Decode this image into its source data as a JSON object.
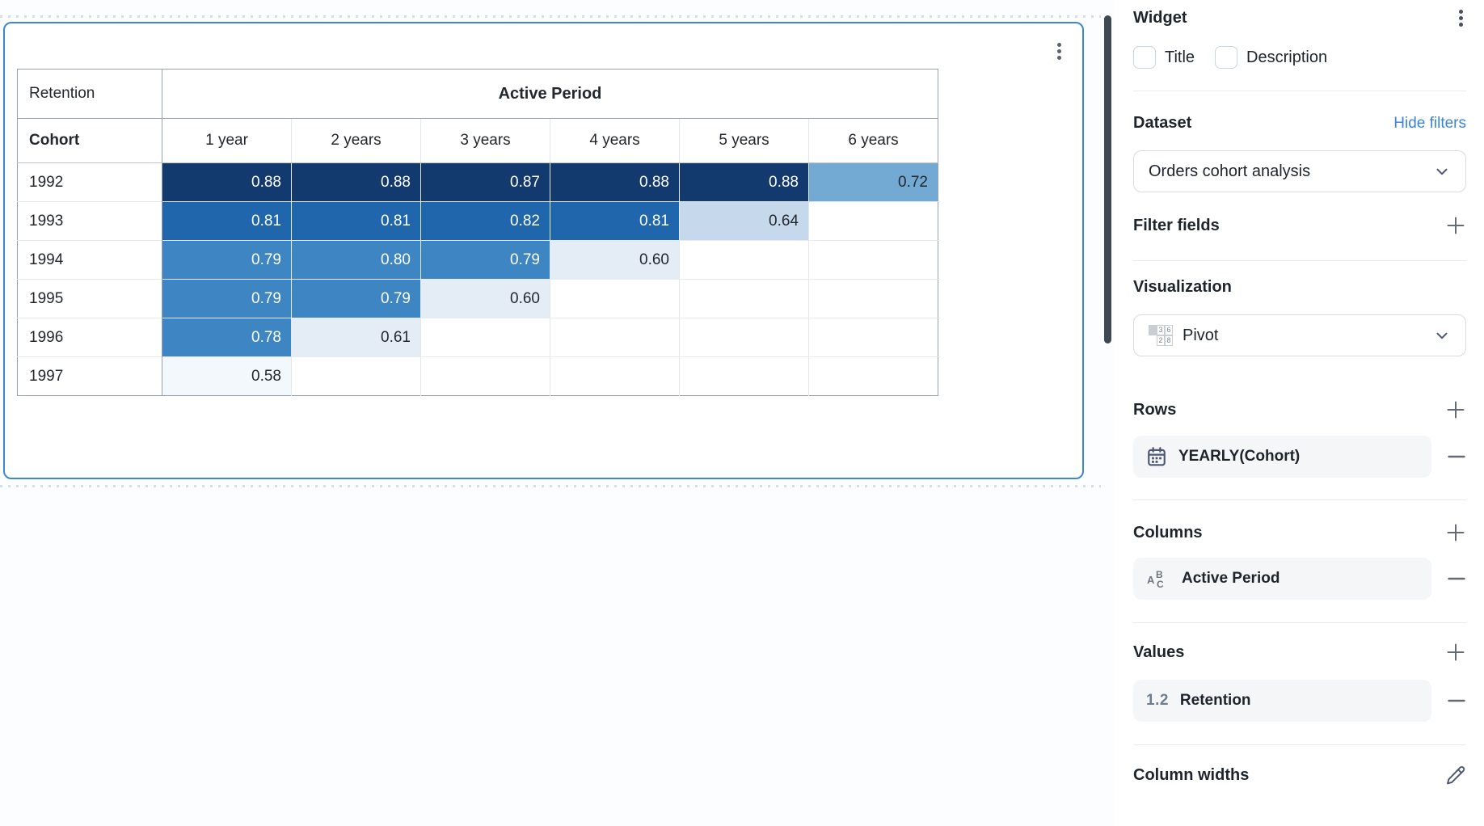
{
  "colors": {
    "card_border": "#3E86D3",
    "link_blue": "#3B84D6",
    "scrollbar": "#3E4853"
  },
  "card": {
    "menu_icon": "kebab-menu"
  },
  "chart_data": {
    "type": "heatmap",
    "title_cell": "Retention",
    "column_group_label": "Active Period",
    "row_header": "Cohort",
    "columns": [
      "1 year",
      "2 years",
      "3 years",
      "4 years",
      "5 years",
      "6 years"
    ],
    "rows": [
      {
        "cohort": "1992",
        "values": [
          0.88,
          0.88,
          0.87,
          0.88,
          0.88,
          0.72
        ]
      },
      {
        "cohort": "1993",
        "values": [
          0.81,
          0.81,
          0.82,
          0.81,
          0.64,
          null
        ]
      },
      {
        "cohort": "1994",
        "values": [
          0.79,
          0.8,
          0.79,
          0.6,
          null,
          null
        ]
      },
      {
        "cohort": "1995",
        "values": [
          0.79,
          0.79,
          0.6,
          null,
          null,
          null
        ]
      },
      {
        "cohort": "1996",
        "values": [
          0.78,
          0.61,
          null,
          null,
          null,
          null
        ]
      },
      {
        "cohort": "1997",
        "values": [
          0.58,
          null,
          null,
          null,
          null,
          null
        ]
      }
    ],
    "value_range": [
      0,
      1
    ],
    "color_scale": [
      [
        0.85,
        "#123A6E",
        "#FFFFFF"
      ],
      [
        0.805,
        "#1F66AD",
        "#FFFFFF"
      ],
      [
        0.75,
        "#3E86C3",
        "#FFFFFF"
      ],
      [
        0.7,
        "#72AAD3",
        "#23282E"
      ],
      [
        0.63,
        "#C6D9EC",
        "#23282E"
      ],
      [
        0.595,
        "#E4EDF6",
        "#23282E"
      ],
      [
        0,
        "#F3F8FC",
        "#23282E"
      ]
    ]
  },
  "sidebar": {
    "title": "Widget",
    "checkboxes": {
      "title_label": "Title",
      "description_label": "Description"
    },
    "dataset": {
      "heading": "Dataset",
      "link": "Hide filters",
      "selected": "Orders cohort analysis"
    },
    "filter_fields": {
      "heading": "Filter fields"
    },
    "visualization": {
      "heading": "Visualization",
      "selected": "Pivot",
      "icon_digits": [
        "3",
        "6",
        "2",
        "8"
      ]
    },
    "rows": {
      "heading": "Rows",
      "item": {
        "label": "YEARLY(Cohort)",
        "icon": "calendar-icon"
      }
    },
    "columns": {
      "heading": "Columns",
      "item": {
        "label": "Active Period",
        "icon": "string-icon"
      }
    },
    "values": {
      "heading": "Values",
      "item": {
        "label": "Retention",
        "icon": "number-icon",
        "icon_text": "1.2"
      }
    },
    "column_widths": {
      "heading": "Column widths"
    }
  }
}
